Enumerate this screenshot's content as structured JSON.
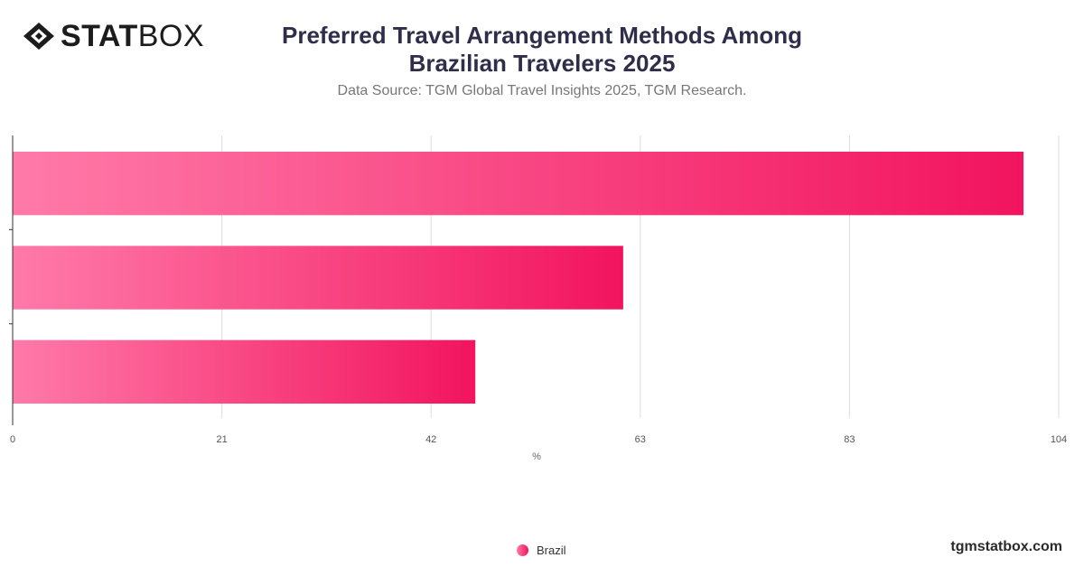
{
  "brand": {
    "logo_bold": "STAT",
    "logo_light": "BOX",
    "footer": "tgmstatbox.com"
  },
  "header": {
    "title_line1": "Preferred Travel Arrangement Methods Among",
    "title_line2": "Brazilian Travelers 2025",
    "subtitle": "Data Source: TGM Global Travel Insights 2025, TGM Research."
  },
  "colors": {
    "bar_start": "#ff7aa8",
    "bar_end": "#f2145f",
    "grid": "#dddddd",
    "axis": "#333333"
  },
  "chart_data": {
    "type": "bar",
    "orientation": "horizontal",
    "categories": [
      "",
      "",
      ""
    ],
    "series": [
      {
        "name": "Brazil",
        "values": [
          100.5,
          60.7,
          46.0
        ]
      }
    ],
    "xlabel": "%",
    "xlim": [
      0,
      104
    ],
    "xticks": [
      "0",
      "21",
      "42",
      "63",
      "83",
      "104"
    ],
    "grid": true,
    "legend_position": "bottom-center"
  }
}
